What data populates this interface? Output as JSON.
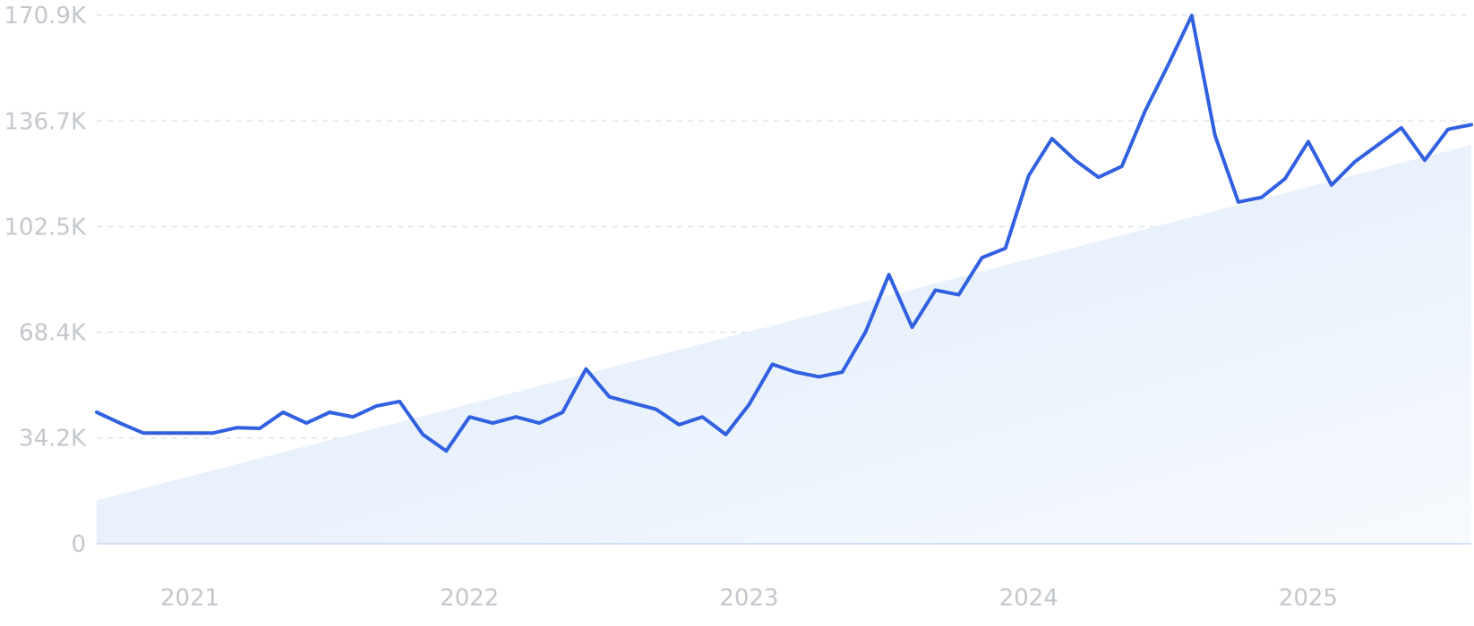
{
  "chart_data": {
    "type": "line",
    "title": "",
    "xlabel": "",
    "ylabel": "",
    "ylim": [
      0,
      170900
    ],
    "y_ticks": [
      {
        "value": 0,
        "label": "0"
      },
      {
        "value": 34200,
        "label": "34.2K"
      },
      {
        "value": 68400,
        "label": "68.4K"
      },
      {
        "value": 102500,
        "label": "102.5K"
      },
      {
        "value": 136700,
        "label": "136.7K"
      },
      {
        "value": 170900,
        "label": "170.9K"
      }
    ],
    "x_ticks": [
      {
        "value": "2021-01",
        "label": "2021"
      },
      {
        "value": "2022-01",
        "label": "2022"
      },
      {
        "value": "2023-01",
        "label": "2023"
      },
      {
        "value": "2024-01",
        "label": "2024"
      },
      {
        "value": "2025-01",
        "label": "2025"
      }
    ],
    "x_range": [
      "2020-09",
      "2025-08"
    ],
    "grid": true,
    "legend": "none",
    "colors": {
      "line": "#3160e0",
      "area": "#e3eefb",
      "grid": "#dfe3e8",
      "tick_text": "#c3c7cd"
    },
    "series": [
      {
        "x": [
          "2020-09",
          "2020-10",
          "2020-11",
          "2020-12",
          "2021-01",
          "2021-02",
          "2021-03",
          "2021-04",
          "2021-05",
          "2021-06",
          "2021-07",
          "2021-08",
          "2021-09",
          "2021-10",
          "2021-11",
          "2021-12",
          "2022-01",
          "2022-02",
          "2022-03",
          "2022-04",
          "2022-05",
          "2022-06",
          "2022-07",
          "2022-08",
          "2022-09",
          "2022-10",
          "2022-11",
          "2022-12",
          "2023-01",
          "2023-02",
          "2023-03",
          "2023-04",
          "2023-05",
          "2023-06",
          "2023-07",
          "2023-08",
          "2023-09",
          "2023-10",
          "2023-11",
          "2023-12",
          "2024-01",
          "2024-02",
          "2024-03",
          "2024-04",
          "2024-05",
          "2024-06",
          "2024-07",
          "2024-08",
          "2024-09",
          "2024-10",
          "2024-11",
          "2024-12",
          "2025-01",
          "2025-02",
          "2025-03",
          "2025-04",
          "2025-05",
          "2025-06",
          "2025-07",
          "2025-08"
        ],
        "values": [
          42500,
          39000,
          35800,
          35800,
          35800,
          35800,
          37500,
          37300,
          42500,
          39000,
          42500,
          41000,
          44500,
          46000,
          35300,
          30000,
          41000,
          39000,
          41000,
          39000,
          42500,
          56500,
          47500,
          45500,
          43500,
          38500,
          41000,
          35300,
          45000,
          58000,
          55500,
          54000,
          55500,
          68500,
          87000,
          70000,
          82000,
          80500,
          92500,
          95500,
          119000,
          131000,
          124000,
          118500,
          122000,
          140000,
          155000,
          170800,
          132000,
          110500,
          112000,
          118000,
          130000,
          116000,
          123500,
          129000,
          134500,
          124000,
          134000,
          135500
        ]
      }
    ],
    "trend_area": {
      "start": 14000,
      "end": 129000
    }
  }
}
